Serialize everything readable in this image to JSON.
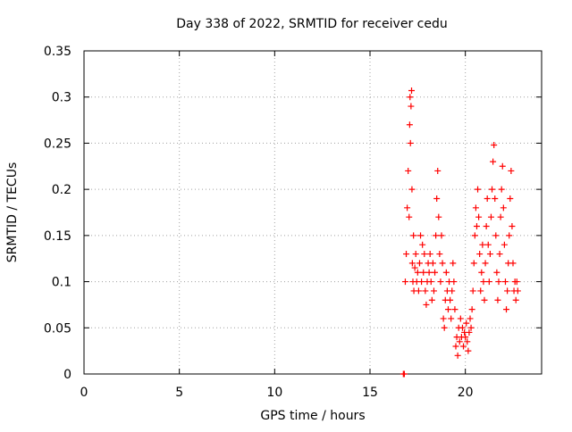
{
  "chart_data": {
    "type": "scatter",
    "title": "Day 338 of 2022, SRMTID for receiver cedu",
    "xlabel": "GPS time / hours",
    "ylabel": "SRMTID / TECUs",
    "xlim": [
      0,
      24
    ],
    "ylim": [
      0,
      0.35
    ],
    "x_ticks": [
      0,
      5,
      10,
      15,
      20
    ],
    "x_tick_labels": [
      "0",
      "5",
      "10",
      "15",
      "20"
    ],
    "y_ticks": [
      0,
      0.05,
      0.1,
      0.15,
      0.2,
      0.25,
      0.3,
      0.35
    ],
    "y_tick_labels": [
      "0",
      "0.05",
      "0.1",
      "0.15",
      "0.2",
      "0.25",
      "0.3",
      "0.35"
    ],
    "grid": true,
    "marker": "+",
    "series": [
      {
        "name": "SRMTID",
        "color": "#ff0000",
        "points": [
          [
            16.75,
            0.0
          ],
          [
            16.8,
            0.0
          ],
          [
            16.85,
            0.1
          ],
          [
            16.9,
            0.13
          ],
          [
            16.95,
            0.18
          ],
          [
            17.0,
            0.22
          ],
          [
            17.05,
            0.17
          ],
          [
            17.08,
            0.27
          ],
          [
            17.1,
            0.3
          ],
          [
            17.12,
            0.25
          ],
          [
            17.15,
            0.29
          ],
          [
            17.18,
            0.307
          ],
          [
            17.2,
            0.2
          ],
          [
            17.22,
            0.12
          ],
          [
            17.25,
            0.1
          ],
          [
            17.28,
            0.15
          ],
          [
            17.3,
            0.09
          ],
          [
            17.35,
            0.115
          ],
          [
            17.4,
            0.13
          ],
          [
            17.45,
            0.1
          ],
          [
            17.5,
            0.11
          ],
          [
            17.55,
            0.09
          ],
          [
            17.6,
            0.12
          ],
          [
            17.65,
            0.15
          ],
          [
            17.7,
            0.1
          ],
          [
            17.75,
            0.14
          ],
          [
            17.8,
            0.11
          ],
          [
            17.85,
            0.13
          ],
          [
            17.9,
            0.09
          ],
          [
            17.95,
            0.075
          ],
          [
            18.0,
            0.1
          ],
          [
            18.05,
            0.12
          ],
          [
            18.1,
            0.11
          ],
          [
            18.15,
            0.13
          ],
          [
            18.2,
            0.1
          ],
          [
            18.25,
            0.08
          ],
          [
            18.3,
            0.12
          ],
          [
            18.35,
            0.09
          ],
          [
            18.4,
            0.11
          ],
          [
            18.45,
            0.15
          ],
          [
            18.5,
            0.19
          ],
          [
            18.55,
            0.22
          ],
          [
            18.6,
            0.17
          ],
          [
            18.65,
            0.13
          ],
          [
            18.7,
            0.1
          ],
          [
            18.75,
            0.15
          ],
          [
            18.8,
            0.12
          ],
          [
            18.85,
            0.06
          ],
          [
            18.9,
            0.05
          ],
          [
            18.95,
            0.08
          ],
          [
            19.0,
            0.11
          ],
          [
            19.05,
            0.09
          ],
          [
            19.1,
            0.07
          ],
          [
            19.15,
            0.1
          ],
          [
            19.2,
            0.08
          ],
          [
            19.25,
            0.06
          ],
          [
            19.3,
            0.09
          ],
          [
            19.35,
            0.12
          ],
          [
            19.4,
            0.1
          ],
          [
            19.45,
            0.07
          ],
          [
            19.5,
            0.03
          ],
          [
            19.55,
            0.04
          ],
          [
            19.6,
            0.02
          ],
          [
            19.65,
            0.05
          ],
          [
            19.7,
            0.035
          ],
          [
            19.75,
            0.06
          ],
          [
            19.8,
            0.04
          ],
          [
            19.85,
            0.05
          ],
          [
            19.9,
            0.03
          ],
          [
            19.95,
            0.045
          ],
          [
            20.0,
            0.04
          ],
          [
            20.05,
            0.055
          ],
          [
            20.1,
            0.035
          ],
          [
            20.15,
            0.025
          ],
          [
            20.2,
            0.045
          ],
          [
            20.25,
            0.06
          ],
          [
            20.3,
            0.05
          ],
          [
            20.35,
            0.07
          ],
          [
            20.4,
            0.09
          ],
          [
            20.45,
            0.12
          ],
          [
            20.5,
            0.15
          ],
          [
            20.55,
            0.18
          ],
          [
            20.6,
            0.16
          ],
          [
            20.65,
            0.2
          ],
          [
            20.7,
            0.17
          ],
          [
            20.75,
            0.13
          ],
          [
            20.8,
            0.09
          ],
          [
            20.85,
            0.11
          ],
          [
            20.9,
            0.14
          ],
          [
            20.95,
            0.1
          ],
          [
            21.0,
            0.08
          ],
          [
            21.05,
            0.12
          ],
          [
            21.1,
            0.16
          ],
          [
            21.15,
            0.19
          ],
          [
            21.2,
            0.14
          ],
          [
            21.25,
            0.1
          ],
          [
            21.3,
            0.13
          ],
          [
            21.35,
            0.17
          ],
          [
            21.4,
            0.2
          ],
          [
            21.45,
            0.23
          ],
          [
            21.5,
            0.248
          ],
          [
            21.55,
            0.19
          ],
          [
            21.6,
            0.15
          ],
          [
            21.65,
            0.11
          ],
          [
            21.7,
            0.08
          ],
          [
            21.75,
            0.1
          ],
          [
            21.8,
            0.13
          ],
          [
            21.85,
            0.17
          ],
          [
            21.9,
            0.2
          ],
          [
            21.95,
            0.225
          ],
          [
            22.0,
            0.18
          ],
          [
            22.05,
            0.14
          ],
          [
            22.1,
            0.1
          ],
          [
            22.15,
            0.07
          ],
          [
            22.2,
            0.09
          ],
          [
            22.25,
            0.12
          ],
          [
            22.3,
            0.15
          ],
          [
            22.35,
            0.19
          ],
          [
            22.4,
            0.22
          ],
          [
            22.45,
            0.16
          ],
          [
            22.5,
            0.12
          ],
          [
            22.55,
            0.09
          ],
          [
            22.6,
            0.1
          ],
          [
            22.65,
            0.08
          ],
          [
            22.7,
            0.1
          ],
          [
            22.75,
            0.09
          ]
        ]
      }
    ]
  }
}
